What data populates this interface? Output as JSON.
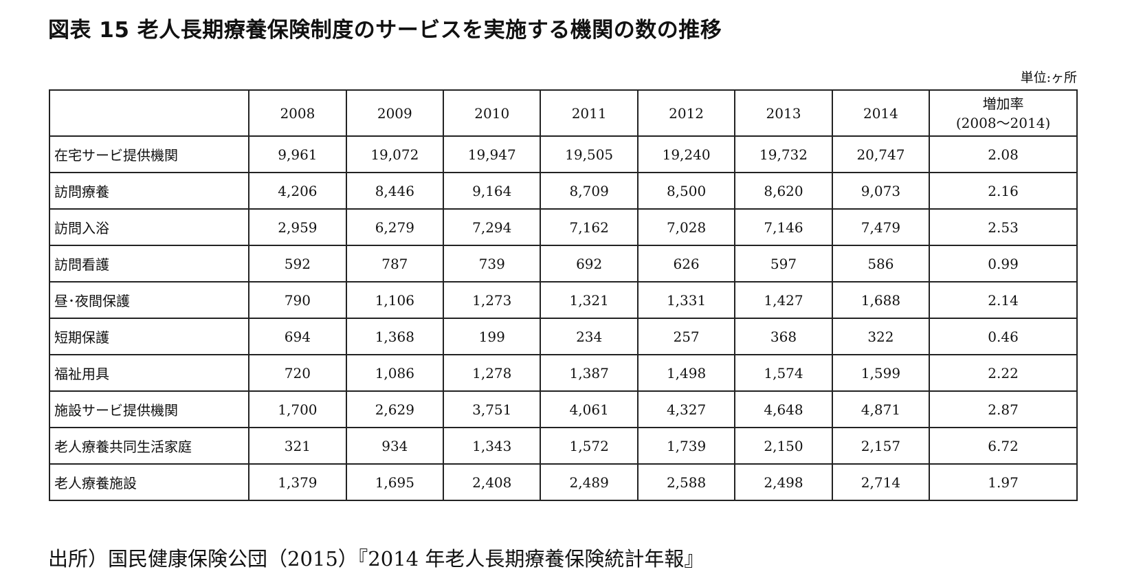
{
  "title": "図表 15 老人長期療養保険制度のサービスを実施する機関の数の推移",
  "unit": "単位:ヶ所",
  "table": {
    "years": [
      "2008",
      "2009",
      "2010",
      "2011",
      "2012",
      "2013",
      "2014"
    ],
    "rate_header_line1": "増加率",
    "rate_header_line2": "(2008～2014)",
    "rows": [
      {
        "label": "在宅サービ提供機関",
        "values": [
          "9,961",
          "19,072",
          "19,947",
          "19,505",
          "19,240",
          "19,732",
          "20,747"
        ],
        "rate": "2.08"
      },
      {
        "label": "訪問療養",
        "values": [
          "4,206",
          "8,446",
          "9,164",
          "8,709",
          "8,500",
          "8,620",
          "9,073"
        ],
        "rate": "2.16"
      },
      {
        "label": "訪問入浴",
        "values": [
          "2,959",
          "6,279",
          "7,294",
          "7,162",
          "7,028",
          "7,146",
          "7,479"
        ],
        "rate": "2.53"
      },
      {
        "label": "訪問看護",
        "values": [
          "592",
          "787",
          "739",
          "692",
          "626",
          "597",
          "586"
        ],
        "rate": "0.99"
      },
      {
        "label": "昼･夜間保護",
        "values": [
          "790",
          "1,106",
          "1,273",
          "1,321",
          "1,331",
          "1,427",
          "1,688"
        ],
        "rate": "2.14"
      },
      {
        "label": "短期保護",
        "values": [
          "694",
          "1,368",
          "199",
          "234",
          "257",
          "368",
          "322"
        ],
        "rate": "0.46"
      },
      {
        "label": "福祉用具",
        "values": [
          "720",
          "1,086",
          "1,278",
          "1,387",
          "1,498",
          "1,574",
          "1,599"
        ],
        "rate": "2.22"
      },
      {
        "label": "施設サービ提供機関",
        "values": [
          "1,700",
          "2,629",
          "3,751",
          "4,061",
          "4,327",
          "4,648",
          "4,871"
        ],
        "rate": "2.87"
      },
      {
        "label": "老人療養共同生活家庭",
        "values": [
          "321",
          "934",
          "1,343",
          "1,572",
          "1,739",
          "2,150",
          "2,157"
        ],
        "rate": "6.72"
      },
      {
        "label": "老人療養施設",
        "values": [
          "1,379",
          "1,695",
          "2,408",
          "2,489",
          "2,588",
          "2,498",
          "2,714"
        ],
        "rate": "1.97"
      }
    ]
  },
  "source": "出所）国民健康保険公団（2015）『2014 年老人長期療養保険統計年報』"
}
